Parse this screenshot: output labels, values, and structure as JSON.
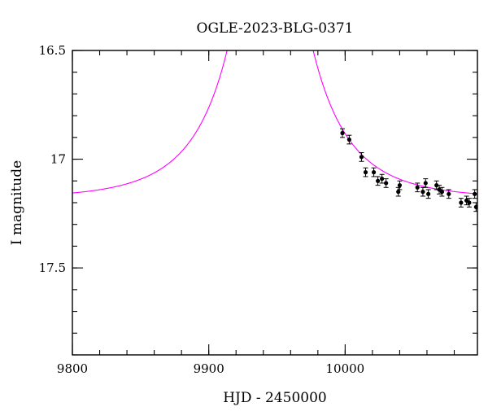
{
  "chart_data": {
    "type": "scatter",
    "title": "OGLE-2023-BLG-0371",
    "xlabel": "HJD - 2450000",
    "ylabel": "I magnitude",
    "xlim": [
      9800,
      10097
    ],
    "ylim": [
      17.9,
      16.5
    ],
    "y_inverted": true,
    "grid": false,
    "x_ticks": [
      9800,
      9900,
      10000
    ],
    "x_tick_labels": [
      "9800",
      "9900",
      "10000"
    ],
    "x_minor_step": 20,
    "y_ticks": [
      16.5,
      17,
      17.5
    ],
    "y_tick_labels": [
      "16.5",
      "17",
      "17.5"
    ],
    "y_minor_step": 0.1,
    "model": {
      "color": "#ff00ff",
      "t0": 9945,
      "tE": 56,
      "u0": 0.04,
      "I_source": 17.3,
      "I_blend": 19.65
    },
    "points": [
      {
        "x": 9998,
        "y": 16.88,
        "err": 0.02
      },
      {
        "x": 10003,
        "y": 16.91,
        "err": 0.02
      },
      {
        "x": 10012,
        "y": 16.99,
        "err": 0.02
      },
      {
        "x": 10015,
        "y": 17.06,
        "err": 0.02
      },
      {
        "x": 10021,
        "y": 17.06,
        "err": 0.02
      },
      {
        "x": 10024,
        "y": 17.1,
        "err": 0.02
      },
      {
        "x": 10027,
        "y": 17.09,
        "err": 0.02
      },
      {
        "x": 10030,
        "y": 17.11,
        "err": 0.02
      },
      {
        "x": 10039,
        "y": 17.15,
        "err": 0.02
      },
      {
        "x": 10040,
        "y": 17.12,
        "err": 0.02
      },
      {
        "x": 10053,
        "y": 17.13,
        "err": 0.02
      },
      {
        "x": 10057,
        "y": 17.15,
        "err": 0.02
      },
      {
        "x": 10059,
        "y": 17.11,
        "err": 0.02
      },
      {
        "x": 10061,
        "y": 17.16,
        "err": 0.02
      },
      {
        "x": 10067,
        "y": 17.12,
        "err": 0.02
      },
      {
        "x": 10069,
        "y": 17.14,
        "err": 0.02
      },
      {
        "x": 10071,
        "y": 17.15,
        "err": 0.02
      },
      {
        "x": 10076,
        "y": 17.16,
        "err": 0.02
      },
      {
        "x": 10085,
        "y": 17.2,
        "err": 0.02
      },
      {
        "x": 10089,
        "y": 17.19,
        "err": 0.02
      },
      {
        "x": 10091,
        "y": 17.2,
        "err": 0.02
      },
      {
        "x": 10095,
        "y": 17.16,
        "err": 0.02
      },
      {
        "x": 10096,
        "y": 17.22,
        "err": 0.02
      }
    ]
  }
}
